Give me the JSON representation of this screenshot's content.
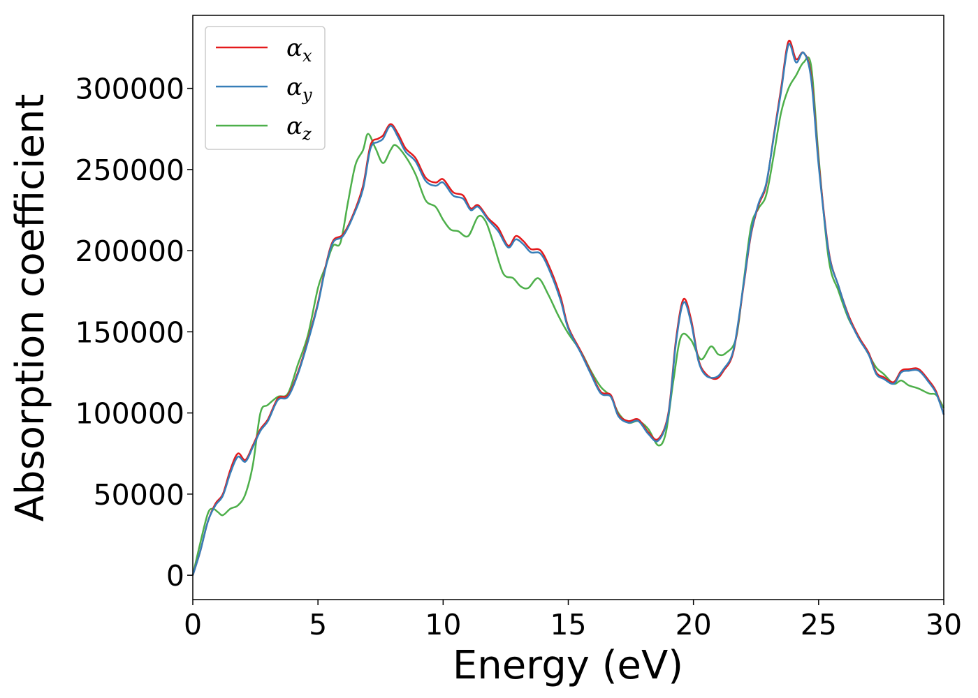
{
  "chart_data": {
    "type": "line",
    "xlabel": "Energy (eV)",
    "ylabel": "Absorption coefficient",
    "xlim": [
      0,
      30
    ],
    "ylim": [
      -15000,
      345000
    ],
    "xticks": [
      0,
      5,
      10,
      15,
      20,
      25,
      30
    ],
    "yticks": [
      0,
      50000,
      100000,
      150000,
      200000,
      250000,
      300000
    ],
    "grid": false,
    "legend_position": "top-left",
    "series": [
      {
        "symbol": "α",
        "subscript": "x",
        "color": "#e41a1c",
        "points": [
          [
            0,
            0
          ],
          [
            0.3,
            15000
          ],
          [
            0.6,
            33000
          ],
          [
            0.9,
            44000
          ],
          [
            1.2,
            50000
          ],
          [
            1.5,
            65000
          ],
          [
            1.8,
            75000
          ],
          [
            2.1,
            71000
          ],
          [
            2.4,
            80000
          ],
          [
            2.7,
            90000
          ],
          [
            3.0,
            96000
          ],
          [
            3.4,
            109000
          ],
          [
            3.8,
            111000
          ],
          [
            4.2,
            125000
          ],
          [
            4.6,
            145000
          ],
          [
            5.0,
            168000
          ],
          [
            5.3,
            190000
          ],
          [
            5.6,
            206000
          ],
          [
            6.0,
            210000
          ],
          [
            6.4,
            222000
          ],
          [
            6.8,
            240000
          ],
          [
            7.1,
            265000
          ],
          [
            7.4,
            269000
          ],
          [
            7.6,
            271000
          ],
          [
            7.9,
            278000
          ],
          [
            8.2,
            272000
          ],
          [
            8.5,
            263000
          ],
          [
            8.9,
            257000
          ],
          [
            9.3,
            245000
          ],
          [
            9.7,
            242000
          ],
          [
            10.0,
            244000
          ],
          [
            10.4,
            236000
          ],
          [
            10.8,
            234000
          ],
          [
            11.1,
            226000
          ],
          [
            11.4,
            228000
          ],
          [
            11.8,
            220000
          ],
          [
            12.2,
            214000
          ],
          [
            12.6,
            203000
          ],
          [
            12.9,
            209000
          ],
          [
            13.2,
            206000
          ],
          [
            13.5,
            201000
          ],
          [
            13.9,
            200000
          ],
          [
            14.3,
            188000
          ],
          [
            14.7,
            171000
          ],
          [
            15.0,
            153000
          ],
          [
            15.5,
            138000
          ],
          [
            15.9,
            125000
          ],
          [
            16.3,
            113000
          ],
          [
            16.7,
            111000
          ],
          [
            17.0,
            99000
          ],
          [
            17.4,
            95000
          ],
          [
            17.8,
            96000
          ],
          [
            18.2,
            88000
          ],
          [
            18.6,
            84000
          ],
          [
            19.0,
            100000
          ],
          [
            19.3,
            145000
          ],
          [
            19.6,
            170000
          ],
          [
            19.9,
            158000
          ],
          [
            20.2,
            133000
          ],
          [
            20.5,
            124000
          ],
          [
            20.9,
            121000
          ],
          [
            21.2,
            126000
          ],
          [
            21.6,
            138000
          ],
          [
            22.0,
            178000
          ],
          [
            22.3,
            210000
          ],
          [
            22.6,
            228000
          ],
          [
            22.9,
            240000
          ],
          [
            23.2,
            270000
          ],
          [
            23.5,
            300000
          ],
          [
            23.8,
            329000
          ],
          [
            24.1,
            318000
          ],
          [
            24.4,
            322000
          ],
          [
            24.7,
            308000
          ],
          [
            25.0,
            255000
          ],
          [
            25.4,
            200000
          ],
          [
            25.8,
            178000
          ],
          [
            26.2,
            160000
          ],
          [
            26.6,
            147000
          ],
          [
            27.0,
            137000
          ],
          [
            27.3,
            125000
          ],
          [
            27.6,
            122000
          ],
          [
            28.0,
            119000
          ],
          [
            28.3,
            126000
          ],
          [
            28.6,
            127000
          ],
          [
            29.0,
            127000
          ],
          [
            29.4,
            120000
          ],
          [
            29.7,
            113000
          ],
          [
            30.0,
            99000
          ]
        ]
      },
      {
        "symbol": "α",
        "subscript": "y",
        "color": "#377eb8",
        "points": [
          [
            0,
            0
          ],
          [
            0.3,
            15000
          ],
          [
            0.6,
            33000
          ],
          [
            0.9,
            43000
          ],
          [
            1.2,
            49000
          ],
          [
            1.5,
            63000
          ],
          [
            1.8,
            73000
          ],
          [
            2.1,
            70000
          ],
          [
            2.4,
            79000
          ],
          [
            2.7,
            89000
          ],
          [
            3.0,
            95000
          ],
          [
            3.4,
            108000
          ],
          [
            3.8,
            110000
          ],
          [
            4.2,
            124000
          ],
          [
            4.6,
            144000
          ],
          [
            5.0,
            167000
          ],
          [
            5.3,
            189000
          ],
          [
            5.6,
            205000
          ],
          [
            6.0,
            209000
          ],
          [
            6.4,
            221000
          ],
          [
            6.8,
            238000
          ],
          [
            7.1,
            263000
          ],
          [
            7.4,
            267000
          ],
          [
            7.6,
            269000
          ],
          [
            7.9,
            277000
          ],
          [
            8.2,
            270000
          ],
          [
            8.5,
            261000
          ],
          [
            8.9,
            255000
          ],
          [
            9.3,
            243000
          ],
          [
            9.7,
            240000
          ],
          [
            10.0,
            242000
          ],
          [
            10.4,
            234000
          ],
          [
            10.8,
            232000
          ],
          [
            11.1,
            225000
          ],
          [
            11.4,
            227000
          ],
          [
            11.8,
            219000
          ],
          [
            12.2,
            212000
          ],
          [
            12.6,
            202000
          ],
          [
            12.9,
            207000
          ],
          [
            13.2,
            204000
          ],
          [
            13.5,
            199000
          ],
          [
            13.9,
            198000
          ],
          [
            14.3,
            186000
          ],
          [
            14.7,
            169000
          ],
          [
            15.0,
            152000
          ],
          [
            15.5,
            137000
          ],
          [
            15.9,
            124000
          ],
          [
            16.3,
            112000
          ],
          [
            16.7,
            110000
          ],
          [
            17.0,
            98000
          ],
          [
            17.4,
            94000
          ],
          [
            17.8,
            95000
          ],
          [
            18.2,
            87000
          ],
          [
            18.6,
            83000
          ],
          [
            19.0,
            99000
          ],
          [
            19.3,
            143000
          ],
          [
            19.6,
            168000
          ],
          [
            19.9,
            156000
          ],
          [
            20.2,
            132000
          ],
          [
            20.5,
            123000
          ],
          [
            20.9,
            122000
          ],
          [
            21.2,
            127000
          ],
          [
            21.6,
            139000
          ],
          [
            22.0,
            179000
          ],
          [
            22.3,
            211000
          ],
          [
            22.6,
            229000
          ],
          [
            22.9,
            241000
          ],
          [
            23.2,
            269000
          ],
          [
            23.5,
            298000
          ],
          [
            23.8,
            327000
          ],
          [
            24.1,
            316000
          ],
          [
            24.4,
            322000
          ],
          [
            24.7,
            306000
          ],
          [
            25.0,
            253000
          ],
          [
            25.4,
            199000
          ],
          [
            25.8,
            178000
          ],
          [
            26.2,
            159000
          ],
          [
            26.6,
            146000
          ],
          [
            27.0,
            136000
          ],
          [
            27.3,
            124000
          ],
          [
            27.6,
            121000
          ],
          [
            28.0,
            118000
          ],
          [
            28.3,
            125000
          ],
          [
            28.6,
            126000
          ],
          [
            29.0,
            126000
          ],
          [
            29.4,
            119000
          ],
          [
            29.7,
            112000
          ],
          [
            30.0,
            99000
          ]
        ]
      },
      {
        "symbol": "α",
        "subscript": "z",
        "color": "#4daf4a",
        "points": [
          [
            0,
            0
          ],
          [
            0.3,
            20000
          ],
          [
            0.6,
            38000
          ],
          [
            0.8,
            41000
          ],
          [
            1.0,
            39000
          ],
          [
            1.2,
            37000
          ],
          [
            1.5,
            41000
          ],
          [
            1.8,
            43000
          ],
          [
            2.1,
            50000
          ],
          [
            2.4,
            68000
          ],
          [
            2.7,
            100000
          ],
          [
            3.0,
            105000
          ],
          [
            3.4,
            110000
          ],
          [
            3.8,
            112000
          ],
          [
            4.2,
            130000
          ],
          [
            4.6,
            148000
          ],
          [
            5.0,
            177000
          ],
          [
            5.3,
            190000
          ],
          [
            5.6,
            203000
          ],
          [
            5.9,
            205000
          ],
          [
            6.2,
            230000
          ],
          [
            6.5,
            253000
          ],
          [
            6.8,
            262000
          ],
          [
            7.0,
            272000
          ],
          [
            7.3,
            263000
          ],
          [
            7.6,
            254000
          ],
          [
            7.9,
            262000
          ],
          [
            8.1,
            265000
          ],
          [
            8.5,
            258000
          ],
          [
            8.9,
            247000
          ],
          [
            9.3,
            231000
          ],
          [
            9.7,
            227000
          ],
          [
            10.0,
            219000
          ],
          [
            10.3,
            213000
          ],
          [
            10.6,
            212000
          ],
          [
            11.0,
            209000
          ],
          [
            11.4,
            221000
          ],
          [
            11.7,
            218000
          ],
          [
            12.0,
            205000
          ],
          [
            12.4,
            186000
          ],
          [
            12.8,
            183000
          ],
          [
            13.1,
            178000
          ],
          [
            13.4,
            177000
          ],
          [
            13.8,
            183000
          ],
          [
            14.2,
            173000
          ],
          [
            14.6,
            160000
          ],
          [
            15.0,
            149000
          ],
          [
            15.5,
            138000
          ],
          [
            15.9,
            126000
          ],
          [
            16.3,
            116000
          ],
          [
            16.7,
            110000
          ],
          [
            17.0,
            100000
          ],
          [
            17.4,
            94000
          ],
          [
            17.8,
            95000
          ],
          [
            18.2,
            90000
          ],
          [
            18.6,
            80000
          ],
          [
            18.9,
            88000
          ],
          [
            19.2,
            120000
          ],
          [
            19.5,
            147000
          ],
          [
            19.9,
            145000
          ],
          [
            20.3,
            133000
          ],
          [
            20.7,
            141000
          ],
          [
            21.0,
            136000
          ],
          [
            21.3,
            137000
          ],
          [
            21.7,
            146000
          ],
          [
            22.0,
            180000
          ],
          [
            22.3,
            215000
          ],
          [
            22.6,
            226000
          ],
          [
            22.9,
            234000
          ],
          [
            23.2,
            258000
          ],
          [
            23.5,
            285000
          ],
          [
            23.8,
            300000
          ],
          [
            24.1,
            308000
          ],
          [
            24.4,
            316000
          ],
          [
            24.7,
            314000
          ],
          [
            25.0,
            258000
          ],
          [
            25.4,
            195000
          ],
          [
            25.8,
            175000
          ],
          [
            26.2,
            158000
          ],
          [
            26.6,
            147000
          ],
          [
            27.0,
            136000
          ],
          [
            27.3,
            128000
          ],
          [
            27.6,
            124000
          ],
          [
            28.0,
            118000
          ],
          [
            28.3,
            120000
          ],
          [
            28.6,
            117000
          ],
          [
            29.0,
            115000
          ],
          [
            29.4,
            112000
          ],
          [
            29.7,
            111000
          ],
          [
            30.0,
            103000
          ]
        ]
      }
    ]
  }
}
